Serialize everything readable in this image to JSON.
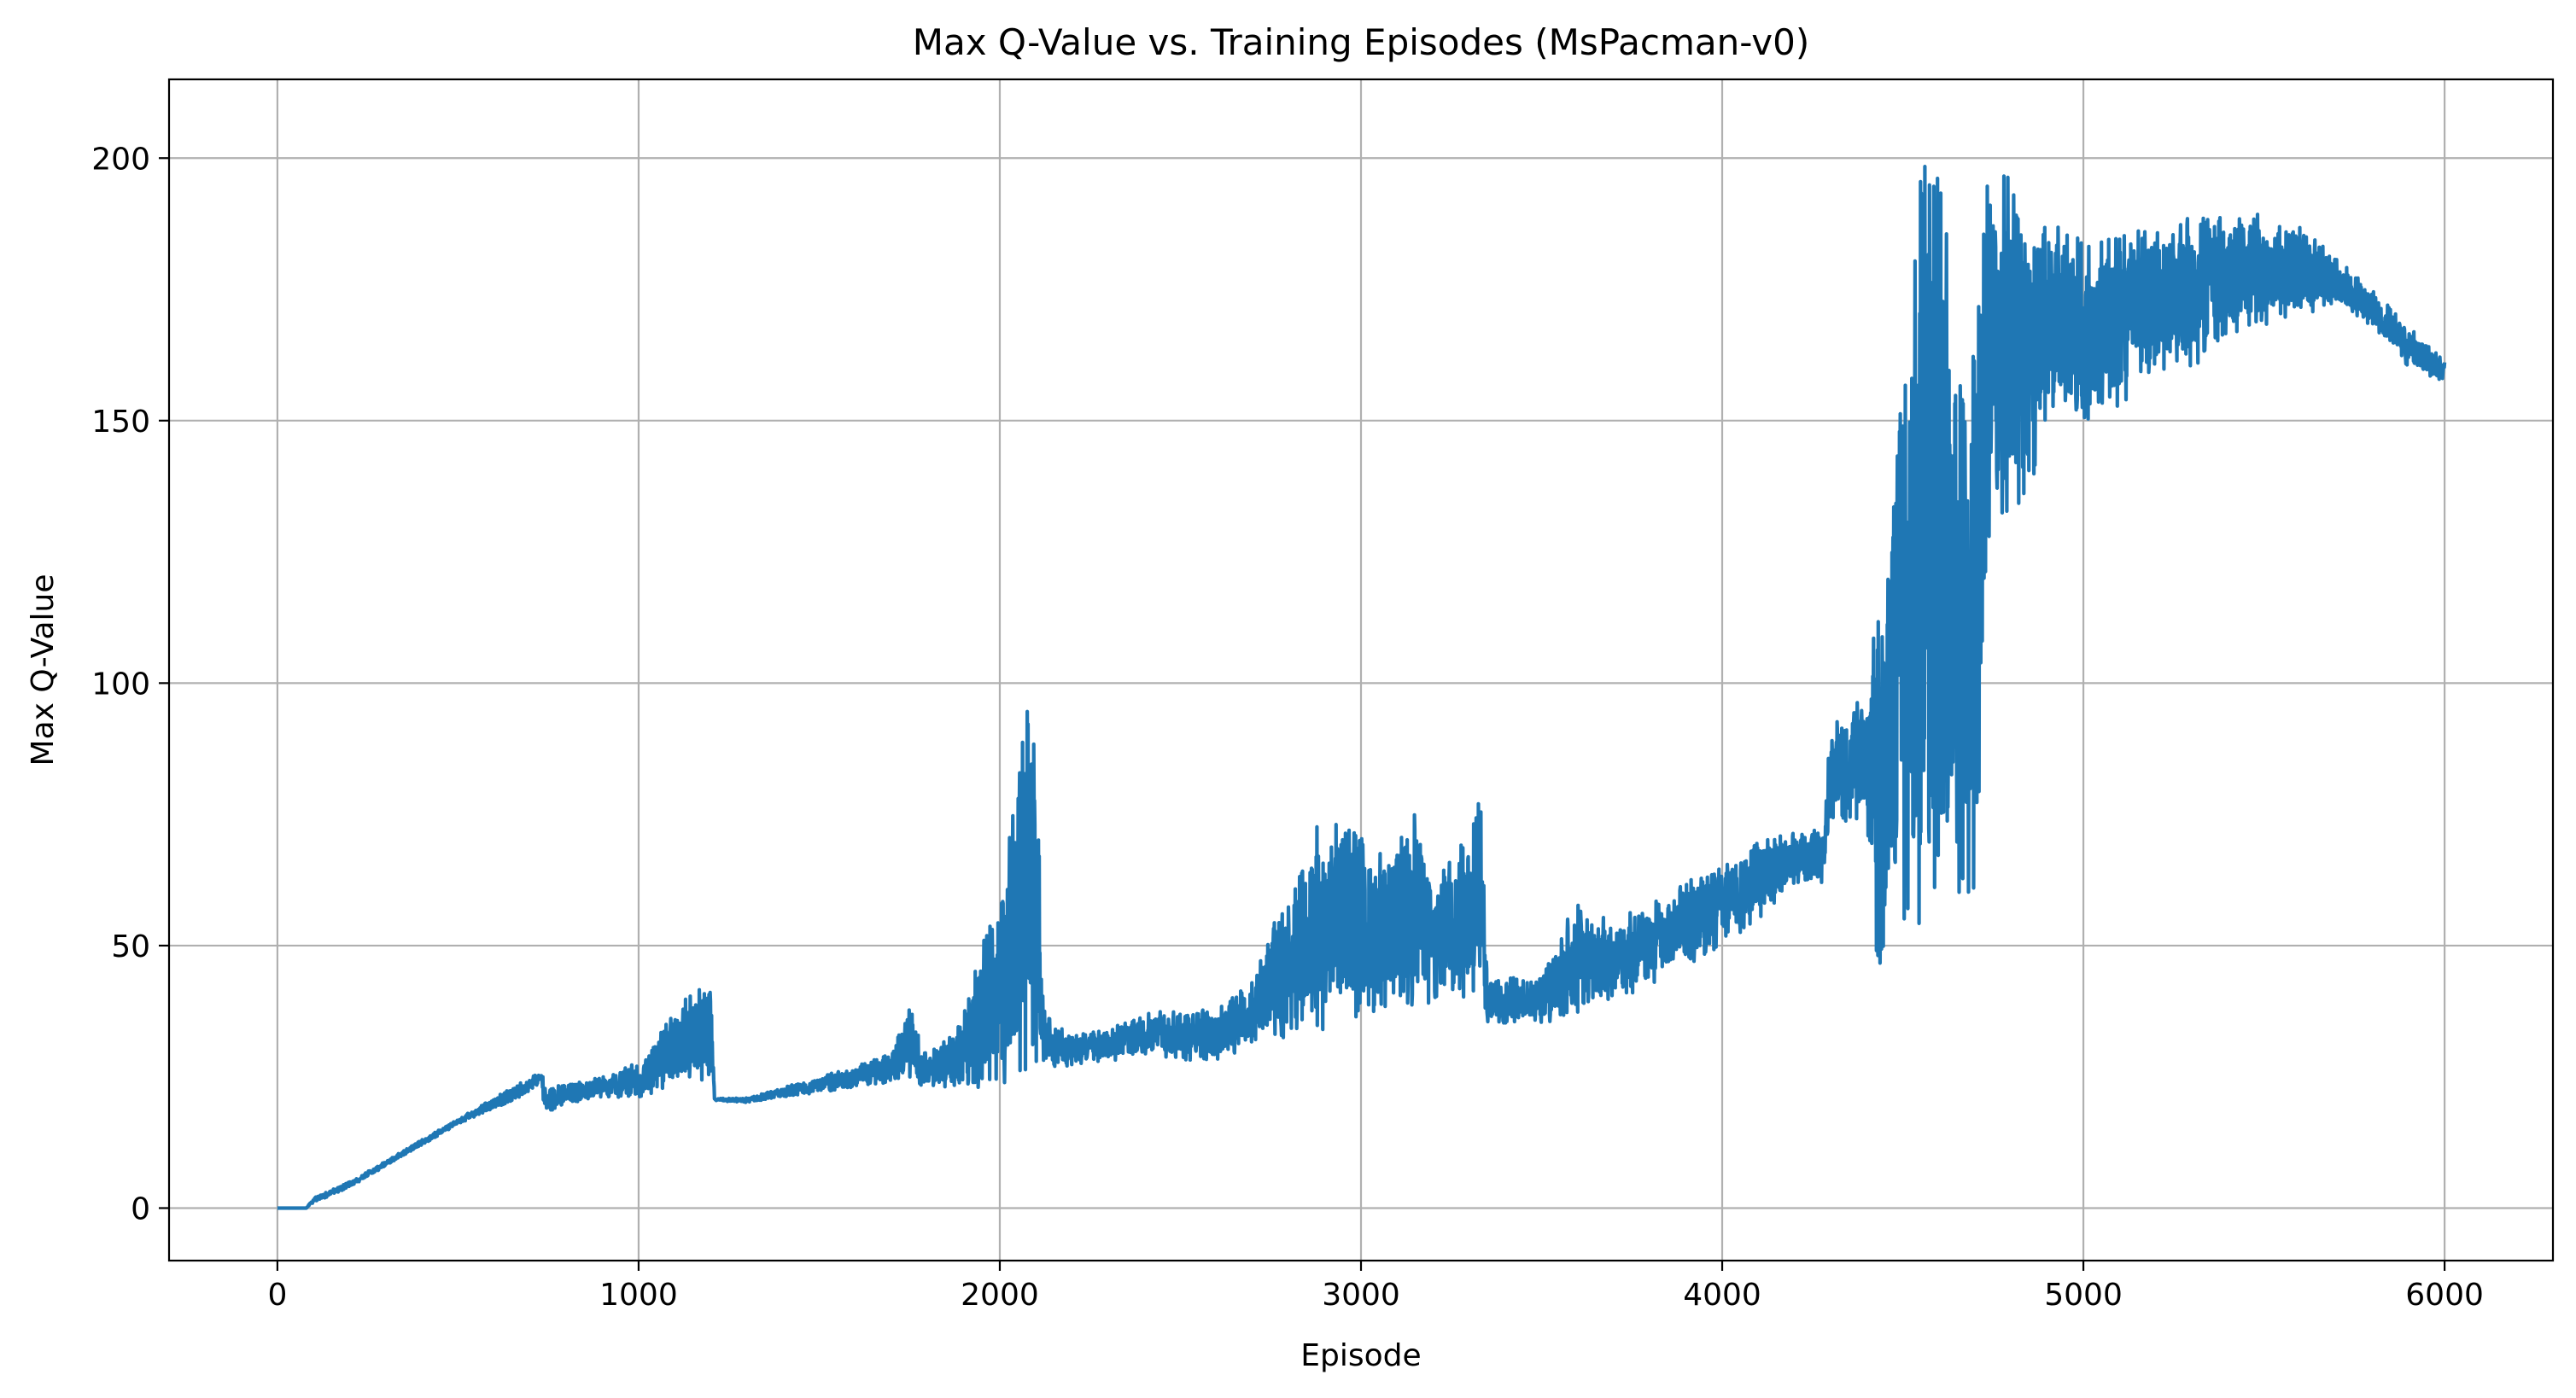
{
  "chart_data": {
    "type": "line",
    "title": "Max Q-Value vs. Training Episodes (MsPacman-v0)",
    "xlabel": "Episode",
    "ylabel": "Max Q-Value",
    "xlim": [
      -300,
      6300
    ],
    "ylim": [
      -10,
      215
    ],
    "xticks": [
      0,
      1000,
      2000,
      3000,
      4000,
      5000,
      6000
    ],
    "xtick_labels": [
      "0",
      "1000",
      "2000",
      "3000",
      "4000",
      "5000",
      "6000"
    ],
    "yticks": [
      0,
      50,
      100,
      150,
      200
    ],
    "ytick_labels": [
      "0",
      "50",
      "100",
      "150",
      "200"
    ],
    "grid": true,
    "legend": "none",
    "series": [
      {
        "color": "#1f77b4",
        "x": [
          0,
          80,
          100,
          200,
          300,
          400,
          500,
          600,
          700,
          730,
          740,
          800,
          900,
          1000,
          1050,
          1100,
          1150,
          1200,
          1210,
          1300,
          1400,
          1500,
          1600,
          1700,
          1760,
          1780,
          1800,
          1850,
          1900,
          1950,
          2000,
          2050,
          2080,
          2100,
          2120,
          2150,
          2200,
          2300,
          2400,
          2500,
          2600,
          2700,
          2750,
          2800,
          2850,
          2900,
          2950,
          3000,
          3050,
          3100,
          3150,
          3200,
          3250,
          3300,
          3330,
          3350,
          3400,
          3500,
          3600,
          3700,
          3800,
          3900,
          4000,
          4100,
          4200,
          4280,
          4300,
          4350,
          4400,
          4430,
          4450,
          4500,
          4550,
          4600,
          4650,
          4700,
          4740,
          4800,
          4850,
          4900,
          5000,
          5100,
          5200,
          5300,
          5400,
          5450,
          5500,
          5600,
          5700,
          5800,
          5900,
          6000
        ],
        "lower": [
          0,
          0,
          1,
          4,
          8,
          12,
          16,
          19,
          22,
          24,
          18,
          20,
          21,
          21,
          22,
          23,
          24,
          24,
          20.5,
          20,
          21,
          22,
          23,
          24,
          25,
          22,
          23,
          23,
          23,
          23,
          23,
          24,
          25,
          26,
          28,
          27,
          27,
          28,
          29,
          28,
          28,
          31,
          32,
          32,
          34,
          34,
          36,
          36,
          38,
          38,
          38,
          39,
          40,
          39,
          40,
          35,
          35,
          35,
          37,
          39,
          42,
          46,
          50,
          55,
          62,
          62,
          74,
          72,
          75,
          43,
          45,
          55,
          45,
          55,
          45,
          60,
          125,
          130,
          135,
          150,
          150,
          152,
          158,
          160,
          165,
          167,
          168,
          170,
          172,
          168,
          160,
          157
        ],
        "upper": [
          0,
          0,
          2,
          5,
          9,
          13,
          17,
          21,
          25,
          26,
          24,
          24,
          25,
          28,
          32,
          38,
          41,
          44,
          21,
          21,
          23,
          25,
          27,
          30,
          40,
          30,
          30,
          32,
          38,
          50,
          60,
          83,
          100,
          97,
          40,
          35,
          33,
          34,
          37,
          38,
          38,
          43,
          54,
          58,
          70,
          76,
          74,
          72,
          68,
          72,
          80,
          62,
          67,
          72,
          80,
          44,
          44,
          45,
          59,
          55,
          58,
          62,
          66,
          70,
          72,
          72,
          92,
          98,
          95,
          120,
          125,
          160,
          199,
          200,
          180,
          170,
          206,
          195,
          190,
          191,
          185,
          185,
          188,
          189,
          190,
          192,
          188,
          187,
          181,
          175,
          168,
          162
        ],
        "center": [
          0,
          0,
          1.5,
          4.5,
          8.5,
          12.5,
          16.5,
          20,
          23.5,
          25,
          21,
          22,
          23,
          24.5,
          27,
          30.5,
          32.5,
          34,
          20.7,
          20.5,
          22,
          23.5,
          25,
          27,
          32.5,
          26,
          26.5,
          27.5,
          30.5,
          36.5,
          41.5,
          53.5,
          62.5,
          61.5,
          34,
          31,
          30,
          31,
          33,
          33,
          33,
          37,
          43,
          45,
          52,
          55,
          55,
          54,
          53,
          55,
          59,
          50.5,
          53.5,
          55.5,
          60,
          39.5,
          39.5,
          40,
          48,
          47,
          50,
          54,
          58,
          62.5,
          67,
          67,
          83,
          85,
          85,
          81.5,
          85,
          107.5,
          122,
          127.5,
          112.5,
          115,
          165.5,
          162.5,
          162.5,
          170.5,
          167.5,
          168.5,
          173,
          174.5,
          177.5,
          179.5,
          178,
          178.5,
          176.5,
          171.5,
          164,
          159.5
        ]
      }
    ]
  }
}
